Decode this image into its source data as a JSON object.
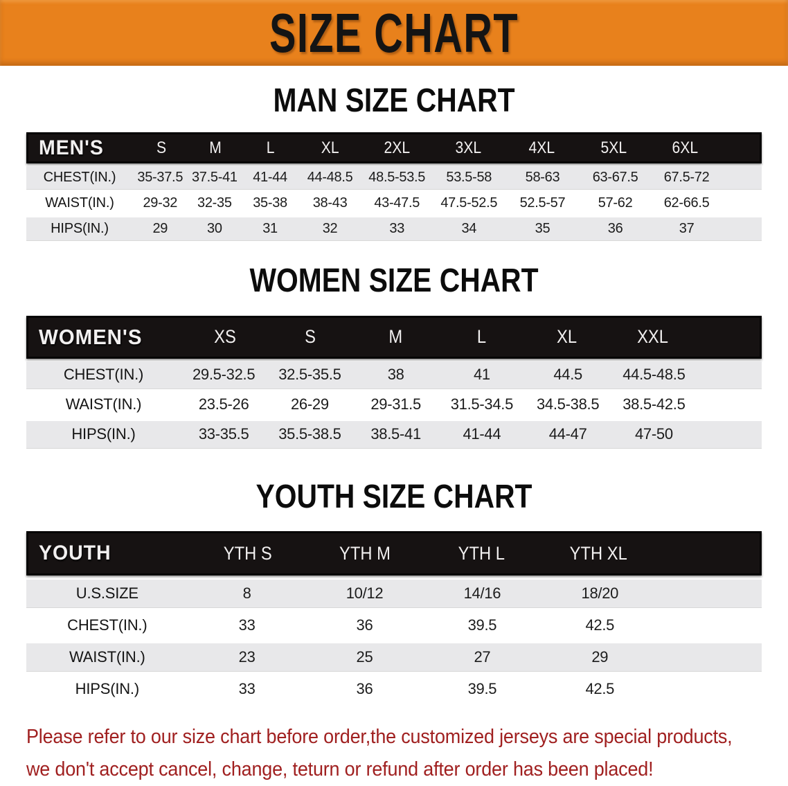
{
  "banner": {
    "title": "SIZE CHART"
  },
  "sections": [
    {
      "id": "men",
      "heading": "MAN SIZE CHART",
      "table": {
        "headers": [
          "MEN'S",
          "S",
          "M",
          "L",
          "XL",
          "2XL",
          "3XL",
          "4XL",
          "5XL",
          "6XL"
        ],
        "rows": [
          [
            "CHEST(IN.)",
            "35-37.5",
            "37.5-41",
            "41-44",
            "44-48.5",
            "48.5-53.5",
            "53.5-58",
            "58-63",
            "63-67.5",
            "67.5-72"
          ],
          [
            "WAIST(IN.)",
            "29-32",
            "32-35",
            "35-38",
            "38-43",
            "43-47.5",
            "47.5-52.5",
            "52.5-57",
            "57-62",
            "62-66.5"
          ],
          [
            "HIPS(IN.)",
            "29",
            "30",
            "31",
            "32",
            "33",
            "34",
            "35",
            "36",
            "37"
          ]
        ]
      }
    },
    {
      "id": "women",
      "heading": "WOMEN SIZE CHART",
      "table": {
        "headers": [
          "WOMEN'S",
          "XS",
          "S",
          "M",
          "L",
          "XL",
          "XXL"
        ],
        "rows": [
          [
            "CHEST(IN.)",
            "29.5-32.5",
            "32.5-35.5",
            "38",
            "41",
            "44.5",
            "44.5-48.5"
          ],
          [
            "WAIST(IN.)",
            "23.5-26",
            "26-29",
            "29-31.5",
            "31.5-34.5",
            "34.5-38.5",
            "38.5-42.5"
          ],
          [
            "HIPS(IN.)",
            "33-35.5",
            "35.5-38.5",
            "38.5-41",
            "41-44",
            "44-47",
            "47-50"
          ]
        ]
      }
    },
    {
      "id": "youth",
      "heading": "YOUTH SIZE CHART",
      "table": {
        "headers": [
          "YOUTH",
          "YTH S",
          "YTH M",
          "YTH L",
          "YTH XL"
        ],
        "rows": [
          [
            "U.S.SIZE",
            "8",
            "10/12",
            "14/16",
            "18/20"
          ],
          [
            "CHEST(IN.)",
            "33",
            "36",
            "39.5",
            "42.5"
          ],
          [
            "WAIST(IN.)",
            "23",
            "25",
            "27",
            "29"
          ],
          [
            "HIPS(IN.)",
            "33",
            "36",
            "39.5",
            "42.5"
          ]
        ]
      }
    }
  ],
  "footer_note": {
    "lines": [
      "Please refer to our size chart before order,the customized jerseys are special products,",
      "we don't accept cancel, change, teturn or refund after order has been placed!"
    ]
  },
  "colors": {
    "banner_bg": "#e8811c",
    "banner_text": "#141414",
    "table_header_bg": "#161212",
    "table_header_text": "#ffffff",
    "row_bg": "#ffffff",
    "row_alt_bg": "#e8e8ea",
    "note_text": "#a02020"
  }
}
